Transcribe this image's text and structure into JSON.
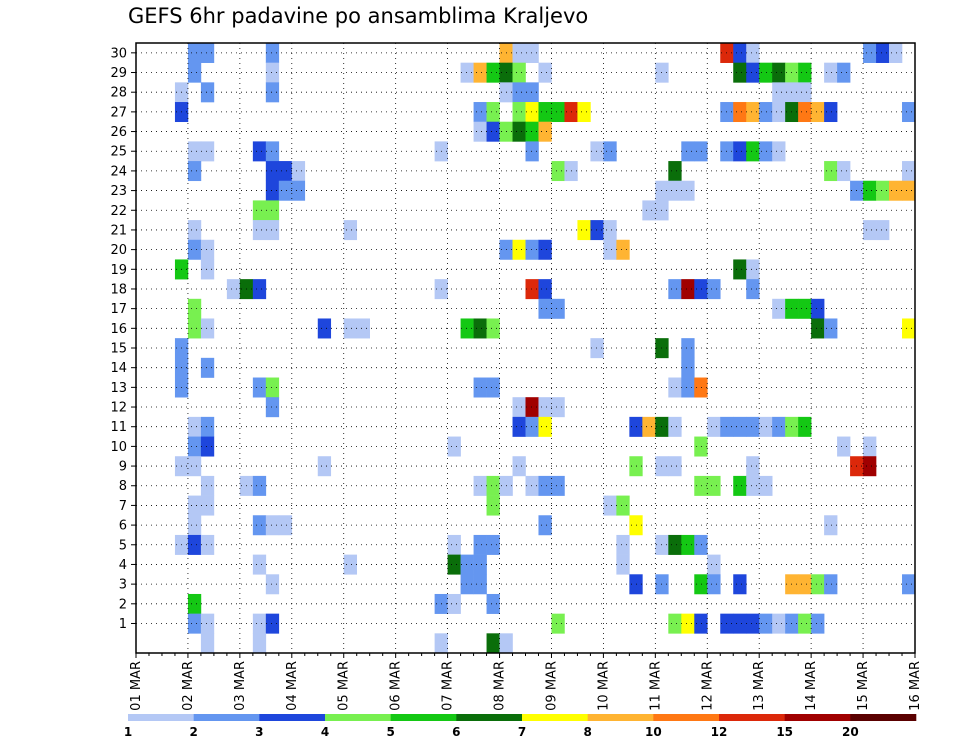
{
  "title": "GEFS 6hr padavine po ansamblima Kraljevo",
  "chart_data": {
    "type": "heatmap",
    "title": "GEFS 6hr padavine po ansamblima Kraljevo",
    "x_ticks": [
      "01 MAR",
      "02 MAR",
      "03 MAR",
      "04 MAR",
      "05 MAR",
      "06 MAR",
      "07 MAR",
      "08 MAR",
      "09 MAR",
      "10 MAR",
      "11 MAR",
      "12 MAR",
      "13 MAR",
      "14 MAR",
      "15 MAR",
      "16 MAR"
    ],
    "y_ticks": [
      1,
      2,
      3,
      4,
      5,
      6,
      7,
      8,
      9,
      10,
      11,
      12,
      13,
      14,
      15,
      16,
      17,
      18,
      19,
      20,
      21,
      22,
      23,
      24,
      25,
      26,
      27,
      28,
      29,
      30
    ],
    "x_steps": 60,
    "steps_per_day": 4,
    "grid": true,
    "legend": {
      "position": "bottom",
      "labels": [
        "1",
        "2",
        "3",
        "4",
        "5",
        "6",
        "7",
        "8",
        "10",
        "12",
        "15",
        "20"
      ],
      "colors": [
        "#b4c8f5",
        "#6496f0",
        "#1e46dc",
        "#78f050",
        "#14c814",
        "#0a6e0a",
        "#ffff00",
        "#ffb432",
        "#ff7814",
        "#dc280a",
        "#a00000",
        "#5a0000"
      ]
    },
    "cells": [
      [
        30,
        4,
        1
      ],
      [
        30,
        5,
        1
      ],
      [
        30,
        10,
        1
      ],
      [
        30,
        28,
        7
      ],
      [
        30,
        29,
        0
      ],
      [
        30,
        30,
        0
      ],
      [
        30,
        45,
        9
      ],
      [
        30,
        46,
        2
      ],
      [
        30,
        47,
        0
      ],
      [
        30,
        56,
        1
      ],
      [
        30,
        57,
        2
      ],
      [
        30,
        58,
        0
      ],
      [
        29,
        4,
        1
      ],
      [
        29,
        10,
        0
      ],
      [
        29,
        25,
        0
      ],
      [
        29,
        26,
        7
      ],
      [
        29,
        27,
        4
      ],
      [
        29,
        28,
        5
      ],
      [
        29,
        29,
        3
      ],
      [
        29,
        31,
        0
      ],
      [
        29,
        40,
        0
      ],
      [
        29,
        46,
        5
      ],
      [
        29,
        47,
        2
      ],
      [
        29,
        48,
        4
      ],
      [
        29,
        49,
        5
      ],
      [
        29,
        50,
        3
      ],
      [
        29,
        51,
        4
      ],
      [
        29,
        53,
        0
      ],
      [
        29,
        54,
        1
      ],
      [
        28,
        3,
        0
      ],
      [
        28,
        5,
        1
      ],
      [
        28,
        10,
        1
      ],
      [
        28,
        28,
        0
      ],
      [
        28,
        29,
        1
      ],
      [
        28,
        30,
        1
      ],
      [
        28,
        49,
        0
      ],
      [
        28,
        50,
        0
      ],
      [
        28,
        51,
        0
      ],
      [
        27,
        3,
        2
      ],
      [
        27,
        26,
        1
      ],
      [
        27,
        27,
        3
      ],
      [
        27,
        29,
        3
      ],
      [
        27,
        30,
        6
      ],
      [
        27,
        31,
        4
      ],
      [
        27,
        32,
        4
      ],
      [
        27,
        33,
        9
      ],
      [
        27,
        34,
        6
      ],
      [
        27,
        45,
        1
      ],
      [
        27,
        46,
        8
      ],
      [
        27,
        47,
        7
      ],
      [
        27,
        48,
        1
      ],
      [
        27,
        49,
        0
      ],
      [
        27,
        50,
        5
      ],
      [
        27,
        51,
        8
      ],
      [
        27,
        52,
        7
      ],
      [
        27,
        53,
        2
      ],
      [
        27,
        59,
        1
      ],
      [
        26,
        26,
        0
      ],
      [
        26,
        27,
        2
      ],
      [
        26,
        28,
        3
      ],
      [
        26,
        29,
        5
      ],
      [
        26,
        30,
        4
      ],
      [
        26,
        31,
        7
      ],
      [
        25,
        4,
        0
      ],
      [
        25,
        5,
        0
      ],
      [
        25,
        9,
        2
      ],
      [
        25,
        10,
        1
      ],
      [
        25,
        23,
        0
      ],
      [
        25,
        30,
        1
      ],
      [
        25,
        35,
        0
      ],
      [
        25,
        36,
        1
      ],
      [
        25,
        42,
        1
      ],
      [
        25,
        43,
        1
      ],
      [
        25,
        45,
        1
      ],
      [
        25,
        46,
        2
      ],
      [
        25,
        47,
        4
      ],
      [
        25,
        48,
        1
      ],
      [
        25,
        49,
        0
      ],
      [
        24,
        4,
        1
      ],
      [
        24,
        10,
        2
      ],
      [
        24,
        11,
        2
      ],
      [
        24,
        12,
        0
      ],
      [
        24,
        32,
        3
      ],
      [
        24,
        33,
        0
      ],
      [
        24,
        41,
        5
      ],
      [
        24,
        53,
        3
      ],
      [
        24,
        54,
        0
      ],
      [
        24,
        59,
        0
      ],
      [
        23,
        10,
        2
      ],
      [
        23,
        11,
        1
      ],
      [
        23,
        12,
        1
      ],
      [
        23,
        40,
        0
      ],
      [
        23,
        41,
        0
      ],
      [
        23,
        42,
        0
      ],
      [
        23,
        55,
        1
      ],
      [
        23,
        56,
        4
      ],
      [
        23,
        57,
        3
      ],
      [
        23,
        58,
        7
      ],
      [
        23,
        59,
        7
      ],
      [
        22,
        9,
        3
      ],
      [
        22,
        10,
        3
      ],
      [
        22,
        39,
        0
      ],
      [
        22,
        40,
        0
      ],
      [
        21,
        4,
        0
      ],
      [
        21,
        9,
        0
      ],
      [
        21,
        10,
        0
      ],
      [
        21,
        16,
        0
      ],
      [
        21,
        34,
        6
      ],
      [
        21,
        35,
        2
      ],
      [
        21,
        36,
        0
      ],
      [
        21,
        56,
        0
      ],
      [
        21,
        57,
        0
      ],
      [
        20,
        4,
        1
      ],
      [
        20,
        5,
        0
      ],
      [
        20,
        28,
        1
      ],
      [
        20,
        29,
        6
      ],
      [
        20,
        30,
        1
      ],
      [
        20,
        31,
        2
      ],
      [
        20,
        36,
        0
      ],
      [
        20,
        37,
        7
      ],
      [
        19,
        3,
        4
      ],
      [
        19,
        5,
        0
      ],
      [
        19,
        46,
        5
      ],
      [
        19,
        47,
        0
      ],
      [
        18,
        7,
        0
      ],
      [
        18,
        8,
        5
      ],
      [
        18,
        9,
        2
      ],
      [
        18,
        23,
        0
      ],
      [
        18,
        30,
        9
      ],
      [
        18,
        31,
        2
      ],
      [
        18,
        41,
        1
      ],
      [
        18,
        42,
        10
      ],
      [
        18,
        43,
        2
      ],
      [
        18,
        44,
        1
      ],
      [
        18,
        47,
        1
      ],
      [
        17,
        4,
        3
      ],
      [
        17,
        31,
        1
      ],
      [
        17,
        32,
        1
      ],
      [
        17,
        49,
        0
      ],
      [
        17,
        50,
        4
      ],
      [
        17,
        51,
        4
      ],
      [
        17,
        52,
        2
      ],
      [
        16,
        4,
        3
      ],
      [
        16,
        5,
        0
      ],
      [
        16,
        14,
        2
      ],
      [
        16,
        16,
        0
      ],
      [
        16,
        17,
        0
      ],
      [
        16,
        25,
        4
      ],
      [
        16,
        26,
        5
      ],
      [
        16,
        27,
        3
      ],
      [
        16,
        52,
        5
      ],
      [
        16,
        53,
        1
      ],
      [
        16,
        59,
        6
      ],
      [
        15,
        3,
        1
      ],
      [
        15,
        35,
        0
      ],
      [
        15,
        40,
        5
      ],
      [
        15,
        42,
        1
      ],
      [
        14,
        3,
        1
      ],
      [
        14,
        5,
        1
      ],
      [
        14,
        42,
        1
      ],
      [
        13,
        3,
        1
      ],
      [
        13,
        9,
        1
      ],
      [
        13,
        10,
        3
      ],
      [
        13,
        26,
        1
      ],
      [
        13,
        27,
        1
      ],
      [
        13,
        41,
        0
      ],
      [
        13,
        42,
        1
      ],
      [
        13,
        43,
        8
      ],
      [
        12,
        10,
        1
      ],
      [
        12,
        29,
        0
      ],
      [
        12,
        30,
        10
      ],
      [
        12,
        31,
        0
      ],
      [
        12,
        32,
        0
      ],
      [
        11,
        4,
        0
      ],
      [
        11,
        5,
        1
      ],
      [
        11,
        29,
        2
      ],
      [
        11,
        30,
        1
      ],
      [
        11,
        31,
        6
      ],
      [
        11,
        38,
        2
      ],
      [
        11,
        39,
        7
      ],
      [
        11,
        40,
        5
      ],
      [
        11,
        41,
        0
      ],
      [
        11,
        44,
        0
      ],
      [
        11,
        45,
        1
      ],
      [
        11,
        46,
        1
      ],
      [
        11,
        47,
        1
      ],
      [
        11,
        48,
        0
      ],
      [
        11,
        49,
        1
      ],
      [
        11,
        50,
        3
      ],
      [
        11,
        51,
        4
      ],
      [
        10,
        4,
        1
      ],
      [
        10,
        5,
        2
      ],
      [
        10,
        24,
        0
      ],
      [
        10,
        43,
        3
      ],
      [
        10,
        54,
        0
      ],
      [
        10,
        56,
        0
      ],
      [
        9,
        3,
        0
      ],
      [
        9,
        4,
        0
      ],
      [
        9,
        14,
        0
      ],
      [
        9,
        29,
        0
      ],
      [
        9,
        38,
        3
      ],
      [
        9,
        40,
        0
      ],
      [
        9,
        41,
        0
      ],
      [
        9,
        47,
        0
      ],
      [
        9,
        55,
        9
      ],
      [
        9,
        56,
        10
      ],
      [
        8,
        5,
        0
      ],
      [
        8,
        8,
        0
      ],
      [
        8,
        9,
        1
      ],
      [
        8,
        26,
        0
      ],
      [
        8,
        27,
        3
      ],
      [
        8,
        28,
        0
      ],
      [
        8,
        30,
        0
      ],
      [
        8,
        31,
        1
      ],
      [
        8,
        32,
        1
      ],
      [
        8,
        43,
        3
      ],
      [
        8,
        44,
        3
      ],
      [
        8,
        46,
        4
      ],
      [
        8,
        47,
        0
      ],
      [
        8,
        48,
        0
      ],
      [
        7,
        4,
        0
      ],
      [
        7,
        5,
        0
      ],
      [
        7,
        27,
        3
      ],
      [
        7,
        36,
        0
      ],
      [
        7,
        37,
        3
      ],
      [
        6,
        4,
        0
      ],
      [
        6,
        9,
        1
      ],
      [
        6,
        10,
        0
      ],
      [
        6,
        11,
        0
      ],
      [
        6,
        31,
        1
      ],
      [
        6,
        38,
        6
      ],
      [
        6,
        53,
        0
      ],
      [
        5,
        3,
        0
      ],
      [
        5,
        4,
        2
      ],
      [
        5,
        5,
        0
      ],
      [
        5,
        24,
        0
      ],
      [
        5,
        26,
        1
      ],
      [
        5,
        27,
        1
      ],
      [
        5,
        37,
        0
      ],
      [
        5,
        40,
        0
      ],
      [
        5,
        41,
        5
      ],
      [
        5,
        42,
        4
      ],
      [
        5,
        43,
        1
      ],
      [
        4,
        9,
        0
      ],
      [
        4,
        16,
        0
      ],
      [
        4,
        24,
        5
      ],
      [
        4,
        25,
        1
      ],
      [
        4,
        26,
        1
      ],
      [
        4,
        37,
        0
      ],
      [
        4,
        44,
        0
      ],
      [
        3,
        10,
        0
      ],
      [
        3,
        25,
        1
      ],
      [
        3,
        26,
        1
      ],
      [
        3,
        38,
        2
      ],
      [
        3,
        40,
        1
      ],
      [
        3,
        43,
        4
      ],
      [
        3,
        44,
        1
      ],
      [
        3,
        46,
        2
      ],
      [
        3,
        50,
        7
      ],
      [
        3,
        51,
        7
      ],
      [
        3,
        52,
        3
      ],
      [
        3,
        53,
        1
      ],
      [
        3,
        59,
        1
      ],
      [
        3,
        60,
        2
      ],
      [
        2,
        4,
        4
      ],
      [
        2,
        23,
        1
      ],
      [
        2,
        24,
        0
      ],
      [
        2,
        27,
        1
      ],
      [
        1,
        4,
        1
      ],
      [
        1,
        5,
        0
      ],
      [
        1,
        9,
        0
      ],
      [
        1,
        10,
        2
      ],
      [
        1,
        32,
        3
      ],
      [
        1,
        41,
        3
      ],
      [
        1,
        42,
        6
      ],
      [
        1,
        43,
        2
      ],
      [
        1,
        45,
        2
      ],
      [
        1,
        46,
        2
      ],
      [
        1,
        47,
        2
      ],
      [
        1,
        48,
        1
      ],
      [
        1,
        49,
        0
      ],
      [
        1,
        50,
        1
      ],
      [
        1,
        51,
        3
      ],
      [
        1,
        52,
        1
      ],
      [
        0,
        5,
        0
      ],
      [
        0,
        9,
        0
      ],
      [
        0,
        23,
        0
      ],
      [
        0,
        27,
        5
      ],
      [
        0,
        28,
        0
      ]
    ]
  }
}
